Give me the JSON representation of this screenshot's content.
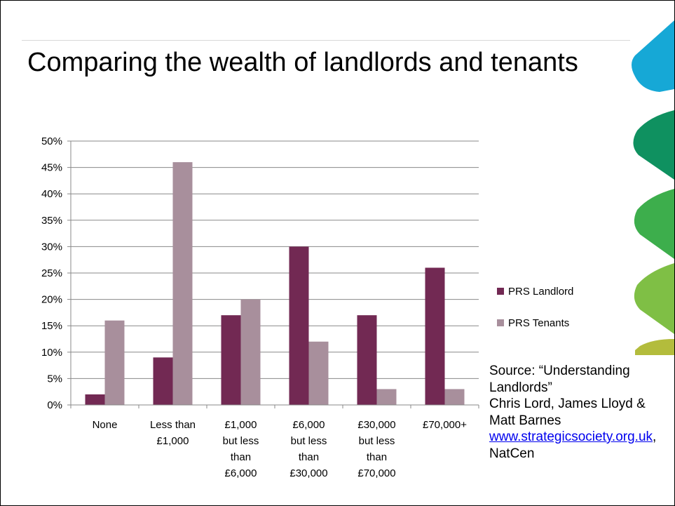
{
  "slide": {
    "title": "Comparing the wealth of landlords and tenants"
  },
  "source": {
    "line1": "Source: “Understanding Landlords”",
    "line2": "Chris Lord, James Lloyd & Matt Barnes",
    "link_text": "www.strategicsociety.org.uk",
    "suffix": ", NatCen"
  },
  "colors": {
    "landlord": "#722953",
    "tenants": "#a88f9c",
    "grid": "#888888",
    "deco_blue": "#16a8d6",
    "deco_teal": "#0f9160",
    "deco_green": "#3dae4c",
    "deco_lime": "#7fbf45",
    "deco_olive": "#b3bc3c"
  },
  "chart_data": {
    "type": "bar",
    "categories": [
      [
        "None"
      ],
      [
        "Less than",
        "£1,000"
      ],
      [
        "£1,000",
        "but less",
        "than",
        "£6,000"
      ],
      [
        "£6,000",
        "but less",
        "than",
        "£30,000"
      ],
      [
        "£30,000",
        "but less",
        "than",
        "£70,000"
      ],
      [
        "£70,000+"
      ]
    ],
    "series": [
      {
        "name": "PRS Landlord",
        "values": [
          2,
          9,
          17,
          30,
          17,
          26
        ]
      },
      {
        "name": "PRS Tenants",
        "values": [
          16,
          46,
          20,
          12,
          3,
          3
        ]
      }
    ],
    "ylim": [
      0,
      50
    ],
    "yticks": [
      0,
      5,
      10,
      15,
      20,
      25,
      30,
      35,
      40,
      45,
      50
    ],
    "ytick_labels": [
      "0%",
      "5%",
      "10%",
      "15%",
      "20%",
      "25%",
      "30%",
      "35%",
      "40%",
      "45%",
      "50%"
    ],
    "grid": true,
    "legend_position": "right"
  }
}
